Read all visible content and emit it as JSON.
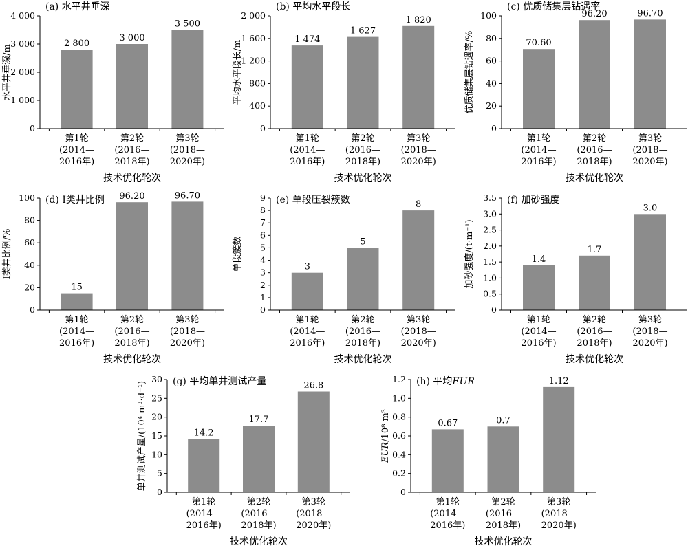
{
  "chart_data": [
    {
      "type": "bar",
      "title": "(a) 水平井垂深",
      "ylabel": "水平井垂深/m",
      "xlabel": "技术优化轮次",
      "categories": [
        [
          "第1轮",
          "(2014—",
          "2016年)"
        ],
        [
          "第2轮",
          "(2016—",
          "2018年)"
        ],
        [
          "第3轮",
          "(2018—",
          "2020年)"
        ]
      ],
      "values": [
        2800,
        3000,
        3500
      ],
      "value_labels": [
        "2 800",
        "3 000",
        "3 500"
      ],
      "ylim": [
        0,
        4000
      ],
      "yticks": [
        0,
        1000,
        2000,
        3000,
        4000
      ],
      "ytick_labels": [
        "0",
        "1 000",
        "2 000",
        "3 000",
        "4 000"
      ]
    },
    {
      "type": "bar",
      "title": "(b) 平均水平段长",
      "ylabel": "平均水平段长/m",
      "xlabel": "技术优化轮次",
      "categories": [
        [
          "第1轮",
          "(2014—",
          "2016年)"
        ],
        [
          "第2轮",
          "(2016—",
          "2018年)"
        ],
        [
          "第3轮",
          "(2018—",
          "2020年)"
        ]
      ],
      "values": [
        1474,
        1627,
        1820
      ],
      "value_labels": [
        "1 474",
        "1 627",
        "1 820"
      ],
      "ylim": [
        0,
        2000
      ],
      "yticks": [
        0,
        400,
        800,
        1200,
        1600,
        2000
      ],
      "ytick_labels": [
        "0",
        "400",
        "800",
        "1 200",
        "1 600",
        "2 000"
      ]
    },
    {
      "type": "bar",
      "title": "(c) 优质储集层钻遇率",
      "ylabel": "优质储集层钻遇率/%",
      "xlabel": "技术优化轮次",
      "categories": [
        [
          "第1轮",
          "(2014—",
          "2016年)"
        ],
        [
          "第2轮",
          "(2016—",
          "2018年)"
        ],
        [
          "第3轮",
          "(2018—",
          "2020年)"
        ]
      ],
      "values": [
        70.6,
        96.2,
        96.7
      ],
      "value_labels": [
        "70.60",
        "96.20",
        "96.70"
      ],
      "ylim": [
        0,
        100
      ],
      "yticks": [
        0,
        20,
        40,
        60,
        80,
        100
      ],
      "ytick_labels": [
        "0",
        "20",
        "40",
        "60",
        "80",
        "100"
      ]
    },
    {
      "type": "bar",
      "title": "(d) Ⅰ类井比例",
      "ylabel": "Ⅰ类井比例/%",
      "xlabel": "技术优化轮次",
      "categories": [
        [
          "第1轮",
          "(2014—",
          "2016年)"
        ],
        [
          "第2轮",
          "(2016—",
          "2018年)"
        ],
        [
          "第3轮",
          "(2018—",
          "2020年)"
        ]
      ],
      "values": [
        15,
        96.2,
        96.7
      ],
      "value_labels": [
        "15",
        "96.20",
        "96.70"
      ],
      "ylim": [
        0,
        100
      ],
      "yticks": [
        0,
        20,
        40,
        60,
        80,
        100
      ],
      "ytick_labels": [
        "0",
        "20",
        "40",
        "60",
        "80",
        "100"
      ]
    },
    {
      "type": "bar",
      "title": "(e) 单段压裂簇数",
      "ylabel": "单段簇数",
      "xlabel": "技术优化轮次",
      "categories": [
        [
          "第1轮",
          "(2014—",
          "2016年)"
        ],
        [
          "第2轮",
          "(2016—",
          "2018年)"
        ],
        [
          "第3轮",
          "(2018—",
          "2020年)"
        ]
      ],
      "values": [
        3,
        5,
        8
      ],
      "value_labels": [
        "3",
        "5",
        "8"
      ],
      "ylim": [
        0,
        9
      ],
      "yticks": [
        0,
        1,
        2,
        3,
        4,
        5,
        6,
        7,
        8,
        9
      ],
      "ytick_labels": [
        "0",
        "1",
        "2",
        "3",
        "4",
        "5",
        "6",
        "7",
        "8",
        "9"
      ]
    },
    {
      "type": "bar",
      "title": "(f) 加砂强度",
      "ylabel": "加砂强度/(t·m⁻¹)",
      "xlabel": "技术优化轮次",
      "categories": [
        [
          "第1轮",
          "(2014—",
          "2016年)"
        ],
        [
          "第2轮",
          "(2016—",
          "2018年)"
        ],
        [
          "第3轮",
          "(2018—",
          "2020年)"
        ]
      ],
      "values": [
        1.4,
        1.7,
        3.0
      ],
      "value_labels": [
        "1.4",
        "1.7",
        "3.0"
      ],
      "ylim": [
        0,
        3.5
      ],
      "yticks": [
        0,
        0.5,
        1.0,
        1.5,
        2.0,
        2.5,
        3.0,
        3.5
      ],
      "ytick_labels": [
        "0",
        "0.5",
        "1.0",
        "1.5",
        "2.0",
        "2.5",
        "3.0",
        "3.5"
      ]
    },
    {
      "type": "bar",
      "title": "(g) 平均单井测试产量",
      "ylabel": "单井测试产量/(10⁴ m³·d⁻¹)",
      "xlabel": "技术优化轮次",
      "categories": [
        [
          "第1轮",
          "(2014—",
          "2016年)"
        ],
        [
          "第2轮",
          "(2016—",
          "2018年)"
        ],
        [
          "第3轮",
          "(2018—",
          "2020年)"
        ]
      ],
      "values": [
        14.2,
        17.7,
        26.8
      ],
      "value_labels": [
        "14.2",
        "17.7",
        "26.8"
      ],
      "ylim": [
        0,
        30
      ],
      "yticks": [
        0,
        5,
        10,
        15,
        20,
        25,
        30
      ],
      "ytick_labels": [
        "0",
        "5",
        "10",
        "15",
        "20",
        "25",
        "30"
      ]
    },
    {
      "type": "bar",
      "title": "(h) 平均EUR",
      "ylabel": "EUR/10⁸ m³",
      "xlabel": "技术优化轮次",
      "categories": [
        [
          "第1轮",
          "(2014—",
          "2016年)"
        ],
        [
          "第2轮",
          "(2016—",
          "2018年)"
        ],
        [
          "第3轮",
          "(2018—",
          "2020年)"
        ]
      ],
      "values": [
        0.67,
        0.7,
        1.12
      ],
      "value_labels": [
        "0.67",
        "0.7",
        "1.12"
      ],
      "ylim": [
        0,
        1.2
      ],
      "yticks": [
        0,
        0.2,
        0.4,
        0.6,
        0.8,
        1.0,
        1.2
      ],
      "ytick_labels": [
        "0",
        "0.2",
        "0.4",
        "0.6",
        "0.8",
        "1.0",
        "1.2"
      ]
    }
  ],
  "colors": {
    "bar": "#8c8c8c",
    "axis": "#000000",
    "text": "#000000"
  }
}
